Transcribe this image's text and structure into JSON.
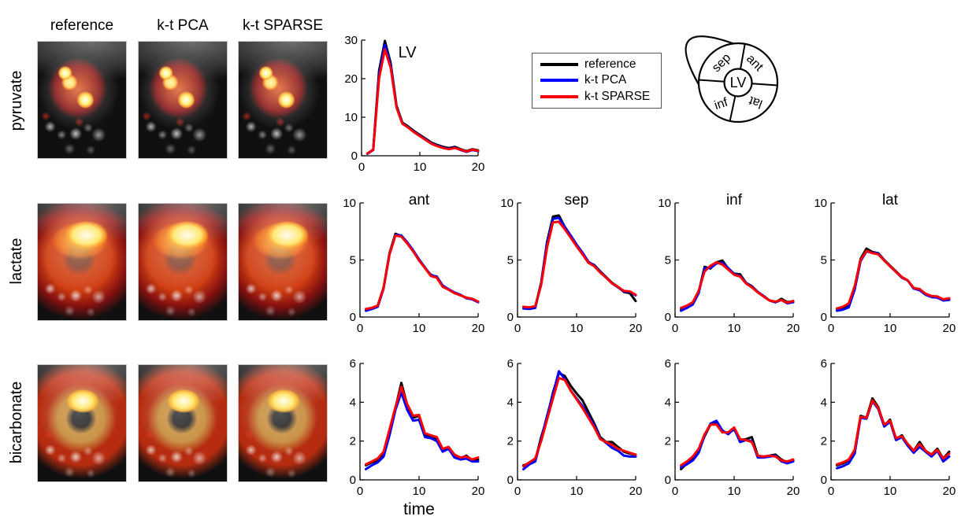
{
  "image_grid": {
    "column_headers": [
      "reference",
      "k-t PCA",
      "k-t SPARSE"
    ],
    "row_labels": [
      "pyruvate",
      "lactate",
      "bicarbonate"
    ]
  },
  "legend": {
    "items": [
      {
        "label": "reference",
        "color": "#000000"
      },
      {
        "label": "k-t PCA",
        "color": "#0000ff"
      },
      {
        "label": "k-t SPARSE",
        "color": "#ff0000"
      }
    ]
  },
  "segment_diagram": {
    "center_label": "LV",
    "segments": {
      "top_left": "sep",
      "top_right": "ant",
      "bottom_left": "inf",
      "bottom_right": "lat"
    }
  },
  "chart_data": [
    {
      "id": "lv-pyruvate",
      "type": "line",
      "title": "",
      "annotation": {
        "text": "LV",
        "x": 6.3,
        "y": 25.5
      },
      "xlim": [
        0,
        20
      ],
      "ylim": [
        0,
        30
      ],
      "xticks": [
        0,
        10,
        20
      ],
      "yticks": [
        0,
        10,
        20,
        30
      ],
      "x": [
        1,
        2,
        3,
        4,
        5,
        6,
        7,
        8,
        9,
        10,
        11,
        12,
        13,
        14,
        15,
        16,
        17,
        18,
        19,
        20
      ],
      "series": [
        {
          "name": "reference",
          "color": "#000000",
          "values": [
            0.6,
            1.6,
            22.0,
            29.8,
            24.0,
            13.0,
            8.6,
            7.6,
            6.4,
            5.4,
            4.4,
            3.4,
            2.8,
            2.3,
            2.0,
            2.3,
            1.7,
            1.2,
            1.7,
            1.4
          ]
        },
        {
          "name": "k-t PCA",
          "color": "#0000ff",
          "values": [
            0.5,
            1.5,
            21.0,
            28.8,
            23.4,
            12.7,
            8.4,
            7.4,
            6.2,
            5.2,
            4.2,
            3.2,
            2.6,
            2.1,
            1.8,
            2.1,
            1.5,
            1.0,
            1.5,
            1.2
          ]
        },
        {
          "name": "k-t SPARSE",
          "color": "#ff0000",
          "values": [
            0.6,
            1.6,
            20.0,
            27.6,
            22.8,
            12.5,
            8.3,
            7.3,
            6.1,
            5.1,
            4.1,
            3.1,
            2.5,
            2.0,
            1.7,
            2.0,
            1.6,
            1.1,
            1.6,
            1.3
          ]
        }
      ]
    },
    {
      "id": "lactate-ant",
      "type": "line",
      "title": "ant",
      "xlim": [
        0,
        20
      ],
      "ylim": [
        0,
        10
      ],
      "xticks": [
        0,
        10,
        20
      ],
      "yticks": [
        0,
        5,
        10
      ],
      "x": [
        1,
        2,
        3,
        4,
        5,
        6,
        7,
        8,
        9,
        10,
        11,
        12,
        13,
        14,
        15,
        16,
        17,
        18,
        19,
        20
      ],
      "series": [
        {
          "name": "reference",
          "color": "#000000",
          "values": [
            0.7,
            0.8,
            1.0,
            2.6,
            5.6,
            7.3,
            7.1,
            6.5,
            5.8,
            5.0,
            4.3,
            3.7,
            3.5,
            2.7,
            2.4,
            2.1,
            1.9,
            1.7,
            1.6,
            1.35
          ]
        },
        {
          "name": "k-t PCA",
          "color": "#0000ff",
          "values": [
            0.55,
            0.7,
            0.9,
            2.5,
            5.5,
            7.2,
            7.15,
            6.55,
            5.85,
            5.05,
            4.35,
            3.65,
            3.55,
            2.75,
            2.45,
            2.15,
            1.95,
            1.65,
            1.55,
            1.3
          ]
        },
        {
          "name": "k-t SPARSE",
          "color": "#ff0000",
          "values": [
            0.7,
            0.8,
            1.0,
            2.55,
            5.5,
            7.15,
            7.05,
            6.45,
            5.75,
            4.95,
            4.3,
            3.6,
            3.45,
            2.65,
            2.4,
            2.1,
            1.9,
            1.7,
            1.6,
            1.35
          ]
        }
      ]
    },
    {
      "id": "lactate-sep",
      "type": "line",
      "title": "sep",
      "xlim": [
        0,
        20
      ],
      "ylim": [
        0,
        10
      ],
      "xticks": [
        0,
        10,
        20
      ],
      "yticks": [
        0,
        5,
        10
      ],
      "x": [
        1,
        2,
        3,
        4,
        5,
        6,
        7,
        8,
        9,
        10,
        11,
        12,
        13,
        14,
        15,
        16,
        17,
        18,
        19,
        20
      ],
      "series": [
        {
          "name": "reference",
          "color": "#000000",
          "values": [
            0.9,
            0.8,
            0.9,
            3.0,
            6.6,
            8.8,
            8.9,
            7.9,
            7.1,
            6.3,
            5.6,
            4.8,
            4.55,
            4.0,
            3.5,
            3.0,
            2.65,
            2.2,
            2.1,
            1.4
          ]
        },
        {
          "name": "k-t PCA",
          "color": "#0000ff",
          "values": [
            0.75,
            0.7,
            0.8,
            2.9,
            6.4,
            8.6,
            8.7,
            7.9,
            7.15,
            6.35,
            5.65,
            4.85,
            4.5,
            3.95,
            3.45,
            2.95,
            2.6,
            2.25,
            2.2,
            1.9
          ]
        },
        {
          "name": "k-t SPARSE",
          "color": "#ff0000",
          "values": [
            0.9,
            0.85,
            0.95,
            2.8,
            6.1,
            8.3,
            8.35,
            7.7,
            6.95,
            6.2,
            5.5,
            4.75,
            4.45,
            3.9,
            3.45,
            2.95,
            2.65,
            2.3,
            2.25,
            1.95
          ]
        }
      ]
    },
    {
      "id": "lactate-inf",
      "type": "line",
      "title": "inf",
      "xlim": [
        0,
        20
      ],
      "ylim": [
        0,
        10
      ],
      "xticks": [
        0,
        10,
        20
      ],
      "yticks": [
        0,
        5,
        10
      ],
      "x": [
        1,
        2,
        3,
        4,
        5,
        6,
        7,
        8,
        9,
        10,
        11,
        12,
        13,
        14,
        15,
        16,
        17,
        18,
        19,
        20
      ],
      "series": [
        {
          "name": "reference",
          "color": "#000000",
          "values": [
            0.65,
            0.9,
            1.2,
            2.2,
            4.4,
            4.25,
            4.8,
            4.95,
            4.25,
            3.8,
            3.75,
            3.0,
            2.7,
            2.2,
            1.8,
            1.45,
            1.3,
            1.6,
            1.3,
            1.4
          ]
        },
        {
          "name": "k-t PCA",
          "color": "#0000ff",
          "values": [
            0.55,
            0.8,
            1.1,
            2.1,
            4.3,
            4.3,
            4.7,
            4.75,
            4.3,
            3.75,
            3.6,
            3.0,
            2.65,
            2.2,
            1.85,
            1.45,
            1.3,
            1.5,
            1.2,
            1.3
          ]
        },
        {
          "name": "k-t SPARSE",
          "color": "#ff0000",
          "values": [
            0.8,
            1.0,
            1.3,
            2.3,
            4.0,
            4.5,
            4.8,
            4.6,
            4.15,
            3.7,
            3.55,
            2.95,
            2.6,
            2.15,
            1.8,
            1.45,
            1.35,
            1.5,
            1.25,
            1.4
          ]
        }
      ]
    },
    {
      "id": "lactate-lat",
      "type": "line",
      "title": "lat",
      "xlim": [
        0,
        20
      ],
      "ylim": [
        0,
        10
      ],
      "xticks": [
        0,
        10,
        20
      ],
      "yticks": [
        0,
        5,
        10
      ],
      "x": [
        1,
        2,
        3,
        4,
        5,
        6,
        7,
        8,
        9,
        10,
        11,
        12,
        13,
        14,
        15,
        16,
        17,
        18,
        19,
        20
      ],
      "series": [
        {
          "name": "reference",
          "color": "#000000",
          "values": [
            0.7,
            0.8,
            1.0,
            2.6,
            5.1,
            6.0,
            5.7,
            5.6,
            5.0,
            4.5,
            4.0,
            3.5,
            3.2,
            2.5,
            2.45,
            2.0,
            1.8,
            1.75,
            1.5,
            1.6
          ]
        },
        {
          "name": "k-t PCA",
          "color": "#0000ff",
          "values": [
            0.55,
            0.65,
            0.85,
            2.4,
            4.9,
            5.75,
            5.65,
            5.55,
            5.0,
            4.45,
            3.95,
            3.45,
            3.2,
            2.5,
            2.35,
            1.95,
            1.75,
            1.7,
            1.45,
            1.5
          ]
        },
        {
          "name": "k-t SPARSE",
          "color": "#ff0000",
          "values": [
            0.75,
            0.9,
            1.2,
            2.7,
            5.0,
            5.8,
            5.6,
            5.5,
            4.95,
            4.45,
            3.95,
            3.5,
            3.2,
            2.55,
            2.45,
            2.05,
            1.85,
            1.8,
            1.55,
            1.65
          ]
        }
      ]
    },
    {
      "id": "bicarbonate-ant",
      "type": "line",
      "title": "",
      "xlabel": "time",
      "xlim": [
        0,
        20
      ],
      "ylim": [
        0,
        6
      ],
      "xticks": [
        0,
        10,
        20
      ],
      "yticks": [
        0,
        2,
        4,
        6
      ],
      "x": [
        1,
        2,
        3,
        4,
        5,
        6,
        7,
        8,
        9,
        10,
        11,
        12,
        13,
        14,
        15,
        16,
        17,
        18,
        19,
        20
      ],
      "series": [
        {
          "name": "reference",
          "color": "#000000",
          "values": [
            0.75,
            0.9,
            1.0,
            1.3,
            2.5,
            3.7,
            5.0,
            3.85,
            3.2,
            3.3,
            2.3,
            2.25,
            2.1,
            1.55,
            1.65,
            1.2,
            1.1,
            1.25,
            1.0,
            1.05
          ]
        },
        {
          "name": "k-t PCA",
          "color": "#0000ff",
          "values": [
            0.55,
            0.75,
            0.9,
            1.2,
            2.3,
            3.6,
            4.5,
            3.6,
            3.05,
            3.1,
            2.2,
            2.15,
            2.0,
            1.45,
            1.6,
            1.15,
            1.05,
            1.1,
            0.95,
            0.95
          ]
        },
        {
          "name": "k-t SPARSE",
          "color": "#ff0000",
          "values": [
            0.8,
            0.95,
            1.1,
            1.45,
            2.6,
            3.75,
            4.8,
            3.9,
            3.3,
            3.35,
            2.4,
            2.3,
            2.2,
            1.6,
            1.7,
            1.3,
            1.15,
            1.2,
            1.05,
            1.15
          ]
        }
      ]
    },
    {
      "id": "bicarbonate-sep",
      "type": "line",
      "title": "",
      "xlim": [
        0,
        20
      ],
      "ylim": [
        0,
        6
      ],
      "xticks": [
        0,
        10,
        20
      ],
      "yticks": [
        0,
        2,
        4,
        6
      ],
      "x": [
        1,
        2,
        3,
        4,
        5,
        6,
        7,
        8,
        9,
        10,
        11,
        12,
        13,
        14,
        15,
        16,
        17,
        18,
        19,
        20
      ],
      "series": [
        {
          "name": "reference",
          "color": "#000000",
          "values": [
            0.75,
            0.85,
            1.0,
            2.2,
            3.2,
            4.5,
            5.5,
            5.35,
            4.85,
            4.45,
            4.1,
            3.5,
            2.9,
            2.2,
            1.95,
            1.95,
            1.7,
            1.45,
            1.35,
            1.3
          ]
        },
        {
          "name": "k-t PCA",
          "color": "#0000ff",
          "values": [
            0.55,
            0.8,
            0.95,
            2.1,
            3.3,
            4.4,
            5.6,
            5.2,
            4.6,
            4.2,
            3.8,
            3.3,
            2.8,
            2.15,
            1.9,
            1.65,
            1.5,
            1.25,
            1.2,
            1.2
          ]
        },
        {
          "name": "k-t SPARSE",
          "color": "#ff0000",
          "values": [
            0.7,
            0.9,
            1.1,
            2.0,
            3.1,
            4.2,
            5.25,
            5.15,
            4.6,
            4.15,
            3.7,
            3.2,
            2.7,
            2.1,
            1.95,
            1.8,
            1.6,
            1.5,
            1.4,
            1.3
          ]
        }
      ]
    },
    {
      "id": "bicarbonate-inf",
      "type": "line",
      "title": "",
      "xlim": [
        0,
        20
      ],
      "ylim": [
        0,
        6
      ],
      "xticks": [
        0,
        10,
        20
      ],
      "yticks": [
        0,
        2,
        4,
        6
      ],
      "x": [
        1,
        2,
        3,
        4,
        5,
        6,
        7,
        8,
        9,
        10,
        11,
        12,
        13,
        14,
        15,
        16,
        17,
        18,
        19,
        20
      ],
      "series": [
        {
          "name": "reference",
          "color": "#000000",
          "values": [
            0.55,
            0.85,
            1.1,
            1.5,
            2.25,
            2.85,
            2.95,
            2.5,
            2.4,
            2.6,
            2.05,
            2.1,
            2.2,
            1.25,
            1.2,
            1.25,
            1.3,
            1.05,
            0.9,
            1.0
          ]
        },
        {
          "name": "k-t PCA",
          "color": "#0000ff",
          "values": [
            0.65,
            0.8,
            1.0,
            1.4,
            2.3,
            2.9,
            3.05,
            2.55,
            2.35,
            2.65,
            1.95,
            2.05,
            2.0,
            1.15,
            1.15,
            1.2,
            1.25,
            0.95,
            0.85,
            0.95
          ]
        },
        {
          "name": "k-t SPARSE",
          "color": "#ff0000",
          "values": [
            0.75,
            0.95,
            1.2,
            1.6,
            2.35,
            2.85,
            2.85,
            2.45,
            2.45,
            2.7,
            2.1,
            2.05,
            1.95,
            1.25,
            1.2,
            1.25,
            1.2,
            1.0,
            0.95,
            1.05
          ]
        }
      ]
    },
    {
      "id": "bicarbonate-lat",
      "type": "line",
      "title": "",
      "xlim": [
        0,
        20
      ],
      "ylim": [
        0,
        6
      ],
      "xticks": [
        0,
        10,
        20
      ],
      "yticks": [
        0,
        2,
        4,
        6
      ],
      "x": [
        1,
        2,
        3,
        4,
        5,
        6,
        7,
        8,
        9,
        10,
        11,
        12,
        13,
        14,
        15,
        16,
        17,
        18,
        19,
        20
      ],
      "series": [
        {
          "name": "reference",
          "color": "#000000",
          "values": [
            0.75,
            0.85,
            1.0,
            1.5,
            3.3,
            3.2,
            4.2,
            3.75,
            2.8,
            3.1,
            2.1,
            2.3,
            1.8,
            1.5,
            1.95,
            1.5,
            1.3,
            1.6,
            1.1,
            1.45
          ]
        },
        {
          "name": "k-t PCA",
          "color": "#0000ff",
          "values": [
            0.6,
            0.7,
            0.85,
            1.35,
            3.2,
            3.15,
            4.05,
            3.65,
            2.75,
            3.0,
            2.05,
            2.2,
            1.75,
            1.4,
            1.7,
            1.45,
            1.2,
            1.5,
            0.95,
            1.2
          ]
        },
        {
          "name": "k-t SPARSE",
          "color": "#ff0000",
          "values": [
            0.8,
            0.9,
            1.05,
            1.55,
            3.25,
            3.2,
            4.1,
            3.7,
            2.85,
            3.05,
            2.15,
            2.25,
            1.85,
            1.5,
            1.85,
            1.5,
            1.3,
            1.55,
            1.1,
            1.35
          ]
        }
      ]
    }
  ]
}
